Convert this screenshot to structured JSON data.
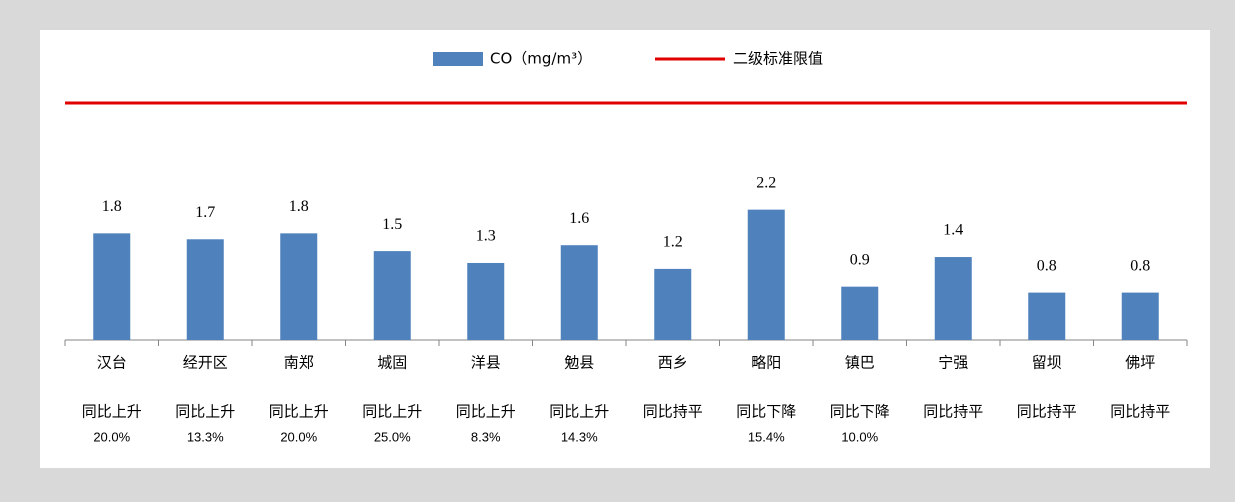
{
  "chart_data": {
    "type": "bar",
    "categories": [
      "汉台",
      "经开区",
      "南郑",
      "城固",
      "洋县",
      "勉县",
      "西乡",
      "略阳",
      "镇巴",
      "宁强",
      "留坝",
      "佛坪"
    ],
    "series": [
      {
        "name": "CO（mg/m³）",
        "color": "#4f81bd",
        "values": [
          1.8,
          1.7,
          1.8,
          1.5,
          1.3,
          1.6,
          1.2,
          2.2,
          0.9,
          1.4,
          0.8,
          0.8
        ]
      }
    ],
    "reference_line": {
      "name": "二级标准限值",
      "value": 4,
      "color": "#e00000"
    },
    "notes": [
      {
        "trend": "同比上升",
        "change": "20.0%"
      },
      {
        "trend": "同比上升",
        "change": "13.3%"
      },
      {
        "trend": "同比上升",
        "change": "20.0%"
      },
      {
        "trend": "同比上升",
        "change": "25.0%"
      },
      {
        "trend": "同比上升",
        "change": "8.3%"
      },
      {
        "trend": "同比上升",
        "change": "14.3%"
      },
      {
        "trend": "同比持平"
      },
      {
        "trend": "同比下降",
        "change": "15.4%"
      },
      {
        "trend": "同比下降",
        "change": "10.0%"
      },
      {
        "trend": "同比持平"
      },
      {
        "trend": "同比持平"
      },
      {
        "trend": "同比持平"
      }
    ],
    "ylim": [
      0,
      4
    ],
    "legend": "top"
  }
}
